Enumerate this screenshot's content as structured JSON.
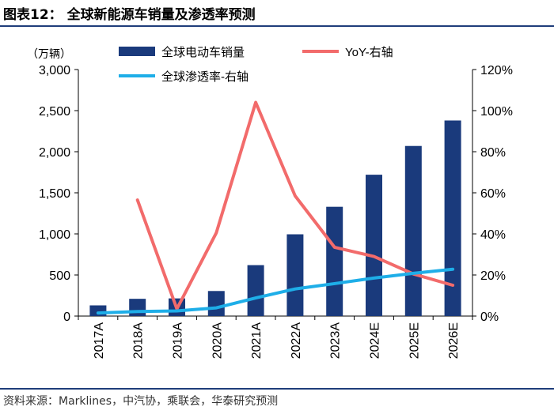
{
  "header": {
    "title": "图表12：  全球新能源车销量及渗透率预测"
  },
  "footer": {
    "source": "资料来源：Marklines，中汽协，乘联会，华泰研究预测"
  },
  "chart_data": {
    "type": "bar",
    "categories": [
      "2017A",
      "2018A",
      "2019A",
      "2020A",
      "2021A",
      "2022A",
      "2023A",
      "2024E",
      "2025E",
      "2026E"
    ],
    "series": [
      {
        "name": "全球电动车销量",
        "type": "bar",
        "axis": "left",
        "color": "#1a3a7c",
        "values": [
          130,
          210,
          215,
          305,
          620,
          995,
          1330,
          1720,
          2070,
          2380
        ]
      },
      {
        "name": "YoY-右轴",
        "type": "line",
        "axis": "right",
        "color": "#f26b6b",
        "values": [
          null,
          56.5,
          3.5,
          40.5,
          104,
          58.5,
          33.5,
          29,
          20.5,
          15
        ]
      },
      {
        "name": "全球渗透率-右轴",
        "type": "line",
        "axis": "right",
        "color": "#1eaee8",
        "values": [
          1.5,
          2.2,
          2.5,
          4.0,
          8.8,
          13.2,
          15.8,
          18.5,
          20.8,
          22.8
        ]
      }
    ],
    "y_left": {
      "label": "（万辆）",
      "min": 0,
      "max": 3000,
      "step": 500,
      "ticks": [
        "0",
        "500",
        "1,000",
        "1,500",
        "2,000",
        "2,500",
        "3,000"
      ]
    },
    "y_right": {
      "min": 0,
      "max": 120,
      "step": 20,
      "ticks": [
        "0%",
        "20%",
        "40%",
        "60%",
        "80%",
        "100%",
        "120%"
      ]
    },
    "legend_position": "top",
    "grid": false
  }
}
